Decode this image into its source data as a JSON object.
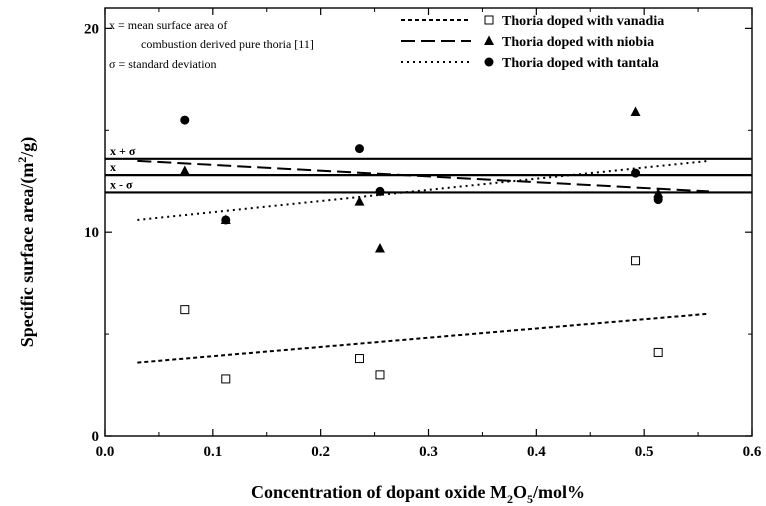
{
  "chart_data": {
    "type": "scatter",
    "xlabel": "Concentration of dopant oxide M₂O₅/mol%",
    "xlabel_parts": {
      "main": "Concentration of dopant oxide M",
      "sub1": "2",
      "mid": "O",
      "sub2": "5",
      "tail": "/mol%"
    },
    "ylabel": "Specific surface area/(m²/g)",
    "ylabel_parts": {
      "main": "Specific surface area/(m",
      "sup": "2",
      "tail": "/g)"
    },
    "xlim": [
      0,
      0.6
    ],
    "ylim": [
      0,
      21
    ],
    "x_ticks": [
      "0.0",
      "0.1",
      "0.2",
      "0.3",
      "0.4",
      "0.5",
      "0.6"
    ],
    "x_tick_values": [
      0,
      0.1,
      0.2,
      0.3,
      0.4,
      0.5,
      0.6
    ],
    "y_ticks": [
      "0",
      "10",
      "20"
    ],
    "y_tick_values": [
      0,
      10,
      20
    ],
    "legend_position": "top-right",
    "series": [
      {
        "name": "Thoria doped with vanadia",
        "marker": "open-square",
        "line_style": "short-dash",
        "x": [
          0.074,
          0.112,
          0.236,
          0.255,
          0.492,
          0.513
        ],
        "y": [
          6.2,
          2.8,
          3.8,
          3.0,
          8.6,
          4.1
        ],
        "fit": {
          "x": [
            0.03,
            0.56
          ],
          "y": [
            3.6,
            6.0
          ]
        }
      },
      {
        "name": "Thoria doped with niobia",
        "marker": "filled-triangle",
        "line_style": "long-dash",
        "x": [
          0.074,
          0.112,
          0.236,
          0.255,
          0.492,
          0.513
        ],
        "y": [
          13.0,
          10.6,
          11.5,
          9.2,
          15.9,
          11.9
        ],
        "fit": {
          "x": [
            0.03,
            0.56
          ],
          "y": [
            13.5,
            12.0
          ]
        }
      },
      {
        "name": "Thoria doped with tantala",
        "marker": "filled-circle",
        "line_style": "dotted",
        "x": [
          0.074,
          0.112,
          0.236,
          0.255,
          0.492,
          0.513
        ],
        "y": [
          15.5,
          10.6,
          14.1,
          12.0,
          12.9,
          11.6
        ],
        "fit": {
          "x": [
            0.03,
            0.56
          ],
          "y": [
            10.6,
            13.5
          ]
        }
      }
    ],
    "reference_lines": [
      {
        "label": "x + σ",
        "y": 13.6
      },
      {
        "label": "x",
        "y": 12.8
      },
      {
        "label": "x - σ",
        "y": 11.95
      }
    ],
    "notes": [
      "x  =  mean surface area of",
      "combustion derived pure thoria  [11]",
      "σ  =  standard deviation"
    ],
    "colors": {
      "ink": "#000000",
      "background": "#ffffff"
    }
  }
}
